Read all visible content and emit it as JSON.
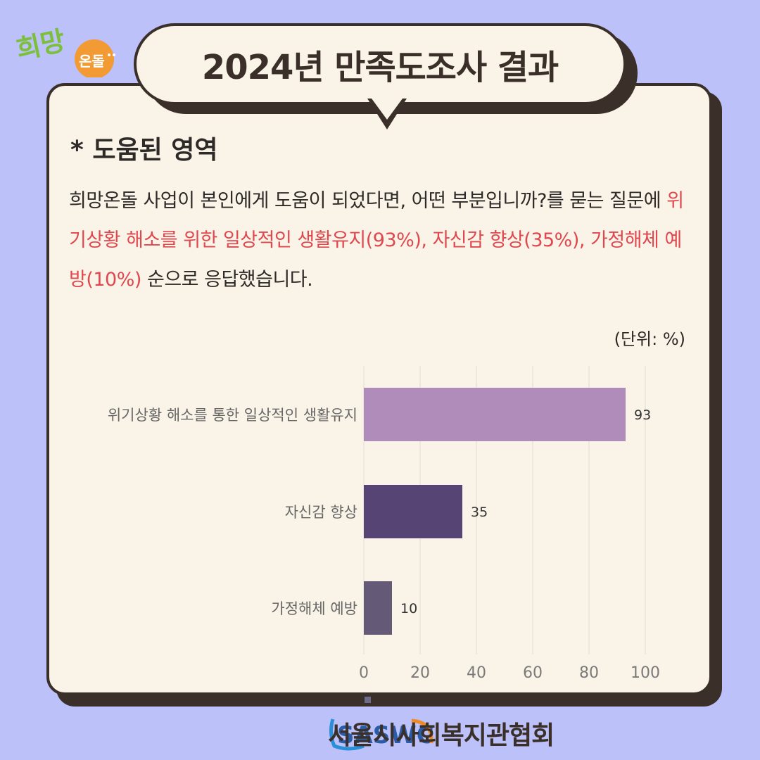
{
  "logo": {
    "text_top": "희망",
    "text_badge": "온돌"
  },
  "header": {
    "title": "2024년 만족도조사 결과"
  },
  "section": {
    "title": "* 도움된 영역"
  },
  "paragraph": {
    "part1": "희망온돌 사업이 본인에게 도움이 되었다면, 어떤 부분입니까?를 묻는 질문에 ",
    "highlight": "위기상황 해소를 위한 일상적인 생활유지(93%), 자신감 향상(35%), 가정해체 예방(10%)",
    "part2": " 순으로 응답했습니다."
  },
  "unit_label": "(단위: %)",
  "chart_data": {
    "type": "bar",
    "orientation": "horizontal",
    "categories": [
      "위기상황 해소를 통한 일상적인 생활유지",
      "자신감 향상",
      "가정해체 예방"
    ],
    "values": [
      93,
      35,
      10
    ],
    "colors": [
      "#b08cba",
      "#554474",
      "#645a77"
    ],
    "xlim": [
      0,
      100
    ],
    "xticks": [
      0,
      20,
      40,
      60,
      80,
      100
    ],
    "grid": true
  },
  "footer": {
    "logo_text": "SASWC",
    "org_name": "서울시사회복지관협회"
  }
}
